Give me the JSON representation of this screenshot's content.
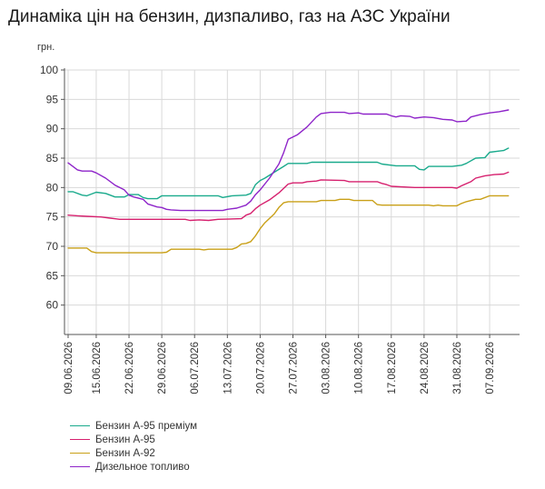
{
  "chart_data": {
    "type": "line",
    "title": "Динаміка цін на бензин, дизпаливо, газ на АЗС України",
    "ylabel": "грн.",
    "ylim": [
      55,
      100
    ],
    "yticks": [
      60,
      65,
      70,
      75,
      80,
      85,
      90,
      95,
      100
    ],
    "x_range": [
      "09.06.2026",
      "13.09.2026"
    ],
    "xticks": [
      "09.06.2026",
      "15.06.2026",
      "22.06.2026",
      "29.06.2026",
      "06.07.2026",
      "13.07.2026",
      "20.07.2026",
      "27.07.2026",
      "03.08.2026",
      "10.08.2026",
      "17.08.2026",
      "24.08.2026",
      "31.08.2026",
      "07.09.2026"
    ],
    "grid": true,
    "legend_position": "bottom-left",
    "series": [
      {
        "name": "Бензин А-95 преміум",
        "color": "#1aaa8c",
        "points": [
          [
            "09.06.2026",
            79.3
          ],
          [
            "10.06.2026",
            79.3
          ],
          [
            "12.06.2026",
            78.7
          ],
          [
            "13.06.2026",
            78.6
          ],
          [
            "15.06.2026",
            79.2
          ],
          [
            "17.06.2026",
            79.0
          ],
          [
            "19.06.2026",
            78.4
          ],
          [
            "21.06.2026",
            78.4
          ],
          [
            "22.06.2026",
            78.8
          ],
          [
            "24.06.2026",
            78.8
          ],
          [
            "25.06.2026",
            78.3
          ],
          [
            "26.06.2026",
            78.1
          ],
          [
            "28.06.2026",
            78.1
          ],
          [
            "29.06.2026",
            78.6
          ],
          [
            "04.07.2026",
            78.6
          ],
          [
            "11.07.2026",
            78.6
          ],
          [
            "12.07.2026",
            78.3
          ],
          [
            "14.07.2026",
            78.6
          ],
          [
            "17.07.2026",
            78.7
          ],
          [
            "18.07.2026",
            79.0
          ],
          [
            "19.07.2026",
            80.5
          ],
          [
            "20.07.2026",
            81.2
          ],
          [
            "21.07.2026",
            81.6
          ],
          [
            "23.07.2026",
            82.6
          ],
          [
            "25.07.2026",
            83.6
          ],
          [
            "26.07.2026",
            84.1
          ],
          [
            "30.07.2026",
            84.1
          ],
          [
            "31.07.2026",
            84.3
          ],
          [
            "14.08.2026",
            84.3
          ],
          [
            "15.08.2026",
            84.0
          ],
          [
            "18.08.2026",
            83.7
          ],
          [
            "22.08.2026",
            83.7
          ],
          [
            "23.08.2026",
            83.1
          ],
          [
            "24.08.2026",
            83.0
          ],
          [
            "25.08.2026",
            83.6
          ],
          [
            "30.08.2026",
            83.6
          ],
          [
            "01.09.2026",
            83.8
          ],
          [
            "02.09.2026",
            84.1
          ],
          [
            "04.09.2026",
            85.0
          ],
          [
            "06.09.2026",
            85.1
          ],
          [
            "07.09.2026",
            86.0
          ],
          [
            "09.09.2026",
            86.2
          ],
          [
            "10.09.2026",
            86.3
          ],
          [
            "11.09.2026",
            86.7
          ]
        ]
      },
      {
        "name": "Бензин А-95",
        "color": "#d6206e",
        "points": [
          [
            "09.06.2026",
            75.3
          ],
          [
            "11.06.2026",
            75.2
          ],
          [
            "13.06.2026",
            75.1
          ],
          [
            "16.06.2026",
            75.0
          ],
          [
            "18.06.2026",
            74.8
          ],
          [
            "20.06.2026",
            74.6
          ],
          [
            "26.06.2026",
            74.6
          ],
          [
            "04.07.2026",
            74.6
          ],
          [
            "05.07.2026",
            74.4
          ],
          [
            "07.07.2026",
            74.5
          ],
          [
            "09.07.2026",
            74.4
          ],
          [
            "11.07.2026",
            74.6
          ],
          [
            "16.07.2026",
            74.7
          ],
          [
            "17.07.2026",
            75.3
          ],
          [
            "18.07.2026",
            75.6
          ],
          [
            "19.07.2026",
            76.4
          ],
          [
            "20.07.2026",
            77.0
          ],
          [
            "22.07.2026",
            77.9
          ],
          [
            "24.07.2026",
            79.1
          ],
          [
            "26.07.2026",
            80.6
          ],
          [
            "27.07.2026",
            80.8
          ],
          [
            "29.07.2026",
            80.8
          ],
          [
            "30.07.2026",
            81.0
          ],
          [
            "01.08.2026",
            81.1
          ],
          [
            "02.08.2026",
            81.3
          ],
          [
            "07.08.2026",
            81.2
          ],
          [
            "08.08.2026",
            81.0
          ],
          [
            "14.08.2026",
            81.0
          ],
          [
            "15.08.2026",
            80.7
          ],
          [
            "16.08.2026",
            80.5
          ],
          [
            "17.08.2026",
            80.2
          ],
          [
            "22.08.2026",
            80.0
          ],
          [
            "30.08.2026",
            80.0
          ],
          [
            "31.08.2026",
            79.9
          ],
          [
            "01.09.2026",
            80.3
          ],
          [
            "03.09.2026",
            81.0
          ],
          [
            "04.09.2026",
            81.6
          ],
          [
            "06.09.2026",
            82.0
          ],
          [
            "08.09.2026",
            82.2
          ],
          [
            "10.09.2026",
            82.3
          ],
          [
            "11.09.2026",
            82.6
          ]
        ]
      },
      {
        "name": "Бензин А-92",
        "color": "#c9a018",
        "points": [
          [
            "09.06.2026",
            69.7
          ],
          [
            "13.06.2026",
            69.7
          ],
          [
            "14.06.2026",
            69.1
          ],
          [
            "15.06.2026",
            68.9
          ],
          [
            "29.06.2026",
            68.9
          ],
          [
            "30.06.2026",
            69.0
          ],
          [
            "01.07.2026",
            69.5
          ],
          [
            "07.07.2026",
            69.5
          ],
          [
            "08.07.2026",
            69.4
          ],
          [
            "09.07.2026",
            69.5
          ],
          [
            "14.07.2026",
            69.5
          ],
          [
            "15.07.2026",
            69.8
          ],
          [
            "16.07.2026",
            70.4
          ],
          [
            "17.07.2026",
            70.5
          ],
          [
            "18.07.2026",
            70.8
          ],
          [
            "19.07.2026",
            71.8
          ],
          [
            "20.07.2026",
            73.0
          ],
          [
            "21.07.2026",
            74.0
          ],
          [
            "23.07.2026",
            75.5
          ],
          [
            "24.07.2026",
            76.6
          ],
          [
            "25.07.2026",
            77.4
          ],
          [
            "26.07.2026",
            77.6
          ],
          [
            "01.08.2026",
            77.6
          ],
          [
            "02.08.2026",
            77.8
          ],
          [
            "05.08.2026",
            77.8
          ],
          [
            "06.08.2026",
            78.0
          ],
          [
            "08.08.2026",
            78.0
          ],
          [
            "09.08.2026",
            77.8
          ],
          [
            "13.08.2026",
            77.8
          ],
          [
            "14.08.2026",
            77.1
          ],
          [
            "15.08.2026",
            77.0
          ],
          [
            "25.08.2026",
            77.0
          ],
          [
            "26.08.2026",
            76.9
          ],
          [
            "27.08.2026",
            77.0
          ],
          [
            "28.08.2026",
            76.9
          ],
          [
            "31.08.2026",
            76.9
          ],
          [
            "01.09.2026",
            77.3
          ],
          [
            "02.09.2026",
            77.6
          ],
          [
            "04.09.2026",
            78.0
          ],
          [
            "05.09.2026",
            78.0
          ],
          [
            "07.09.2026",
            78.6
          ],
          [
            "11.09.2026",
            78.6
          ]
        ]
      },
      {
        "name": "Дизельное топливо",
        "color": "#8e24c9",
        "points": [
          [
            "09.06.2026",
            84.2
          ],
          [
            "10.06.2026",
            83.6
          ],
          [
            "11.06.2026",
            83.0
          ],
          [
            "12.06.2026",
            82.8
          ],
          [
            "14.06.2026",
            82.8
          ],
          [
            "15.06.2026",
            82.5
          ],
          [
            "17.06.2026",
            81.6
          ],
          [
            "19.06.2026",
            80.4
          ],
          [
            "20.06.2026",
            80.0
          ],
          [
            "21.06.2026",
            79.6
          ],
          [
            "22.06.2026",
            78.7
          ],
          [
            "23.06.2026",
            78.4
          ],
          [
            "25.06.2026",
            78.0
          ],
          [
            "26.06.2026",
            77.2
          ],
          [
            "28.06.2026",
            76.7
          ],
          [
            "29.06.2026",
            76.6
          ],
          [
            "30.06.2026",
            76.3
          ],
          [
            "01.07.2026",
            76.2
          ],
          [
            "03.07.2026",
            76.1
          ],
          [
            "12.07.2026",
            76.1
          ],
          [
            "13.07.2026",
            76.3
          ],
          [
            "15.07.2026",
            76.5
          ],
          [
            "17.07.2026",
            77.0
          ],
          [
            "18.07.2026",
            77.7
          ],
          [
            "19.07.2026",
            78.8
          ],
          [
            "20.07.2026",
            79.6
          ],
          [
            "22.07.2026",
            81.6
          ],
          [
            "24.07.2026",
            84.0
          ],
          [
            "25.07.2026",
            85.9
          ],
          [
            "26.07.2026",
            88.2
          ],
          [
            "28.07.2026",
            89.0
          ],
          [
            "30.07.2026",
            90.3
          ],
          [
            "01.08.2026",
            92.0
          ],
          [
            "02.08.2026",
            92.6
          ],
          [
            "04.08.2026",
            92.8
          ],
          [
            "07.08.2026",
            92.8
          ],
          [
            "08.08.2026",
            92.6
          ],
          [
            "10.08.2026",
            92.7
          ],
          [
            "11.08.2026",
            92.5
          ],
          [
            "16.08.2026",
            92.5
          ],
          [
            "17.08.2026",
            92.2
          ],
          [
            "18.08.2026",
            92.0
          ],
          [
            "19.08.2026",
            92.2
          ],
          [
            "21.08.2026",
            92.1
          ],
          [
            "22.08.2026",
            91.8
          ],
          [
            "24.08.2026",
            92.0
          ],
          [
            "26.08.2026",
            91.9
          ],
          [
            "28.08.2026",
            91.6
          ],
          [
            "30.08.2026",
            91.5
          ],
          [
            "31.08.2026",
            91.2
          ],
          [
            "02.09.2026",
            91.3
          ],
          [
            "03.09.2026",
            92.0
          ],
          [
            "05.09.2026",
            92.4
          ],
          [
            "07.09.2026",
            92.7
          ],
          [
            "09.09.2026",
            92.9
          ],
          [
            "11.09.2026",
            93.2
          ]
        ]
      }
    ]
  }
}
